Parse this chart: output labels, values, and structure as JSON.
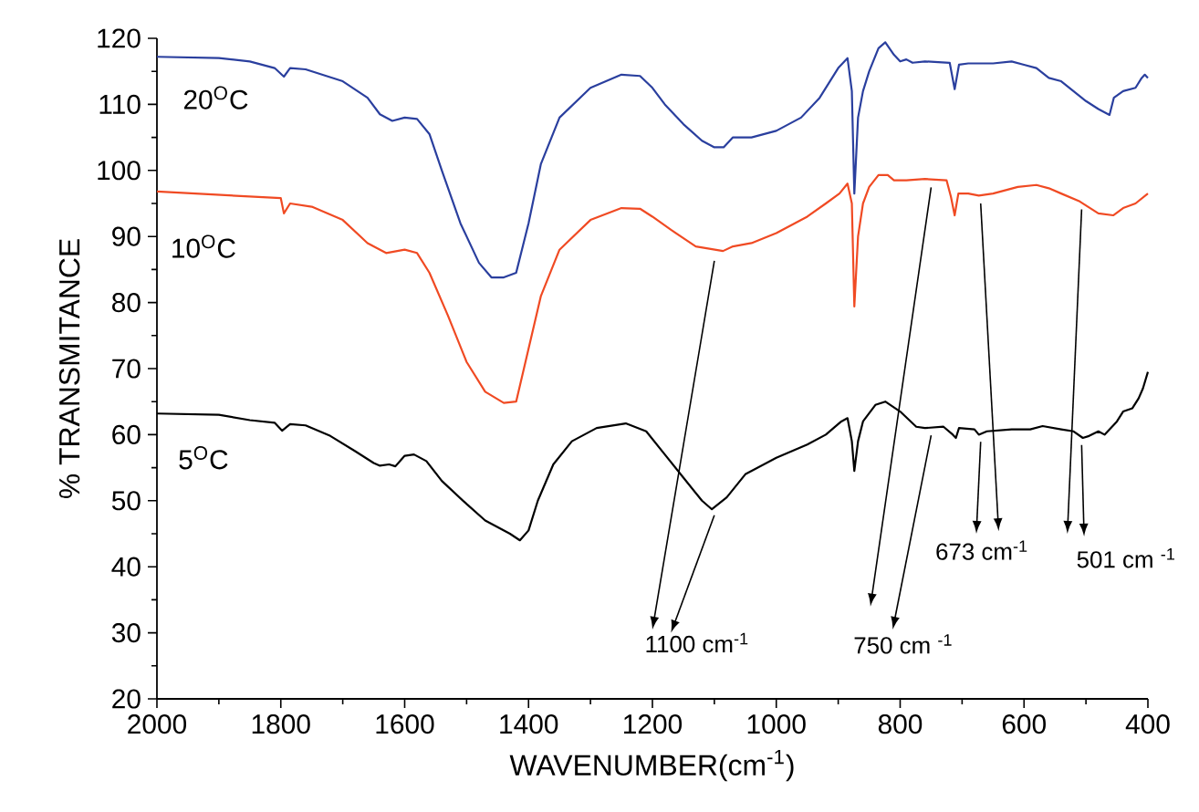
{
  "chart_data": {
    "type": "line",
    "xlabel": "WAVENUMBER(cm$^{-1}$)",
    "ylabel": "% TRANSMITANCE",
    "xlim": [
      2000,
      400
    ],
    "xticks": [
      2000,
      1800,
      1600,
      1400,
      1200,
      1000,
      800,
      600,
      400
    ],
    "ylim": [
      20,
      120
    ],
    "yticks": [
      20,
      30,
      40,
      50,
      60,
      70,
      80,
      90,
      100,
      110,
      120
    ],
    "series": [
      {
        "name": "20$^{O}$C",
        "color": "#2a3f9e",
        "x": [
          2000,
          1900,
          1850,
          1810,
          1795,
          1785,
          1760,
          1700,
          1660,
          1640,
          1620,
          1600,
          1580,
          1560,
          1540,
          1510,
          1480,
          1460,
          1440,
          1420,
          1400,
          1380,
          1350,
          1300,
          1250,
          1220,
          1200,
          1180,
          1150,
          1120,
          1100,
          1085,
          1070,
          1040,
          1000,
          960,
          930,
          900,
          885,
          878,
          874,
          868,
          860,
          850,
          835,
          824,
          810,
          800,
          790,
          780,
          760,
          720,
          712,
          705,
          690,
          650,
          620,
          600,
          580,
          560,
          540,
          520,
          500,
          480,
          462,
          455,
          440,
          420,
          410,
          405,
          400
        ],
        "values": [
          117.2,
          117,
          116.5,
          115.5,
          114.2,
          115.5,
          115.3,
          113.5,
          111,
          108.5,
          107.5,
          108,
          107.8,
          105.5,
          100,
          92,
          86,
          83.8,
          83.8,
          84.5,
          92,
          101,
          108,
          112.5,
          114.5,
          114.3,
          112.5,
          110,
          107,
          104.5,
          103.5,
          103.5,
          105,
          105,
          106,
          108,
          111,
          115.5,
          117,
          112,
          96.5,
          108,
          112,
          115,
          118.5,
          119.4,
          117.5,
          116.5,
          116.8,
          116.3,
          116.5,
          116.3,
          112.3,
          116,
          116.2,
          116.2,
          116.5,
          116,
          115.5,
          114,
          113.5,
          112,
          110.5,
          109.3,
          108.4,
          111,
          112,
          112.5,
          114,
          114.5,
          114
        ]
      },
      {
        "name": "10$^{O}$C",
        "color": "#f04a23",
        "x": [
          2000,
          1800,
          1795,
          1785,
          1750,
          1700,
          1660,
          1630,
          1600,
          1580,
          1560,
          1530,
          1500,
          1470,
          1440,
          1420,
          1400,
          1380,
          1350,
          1300,
          1250,
          1220,
          1200,
          1170,
          1130,
          1086,
          1070,
          1040,
          1000,
          950,
          920,
          898,
          885,
          878,
          874,
          868,
          860,
          850,
          835,
          820,
          810,
          790,
          760,
          725,
          718,
          712,
          706,
          690,
          673,
          650,
          610,
          580,
          560,
          540,
          510,
          480,
          456,
          440,
          420,
          400
        ],
        "values": [
          96.8,
          95.8,
          93.5,
          95,
          94.5,
          92.5,
          89,
          87.5,
          88,
          87.5,
          84.5,
          78,
          71,
          66.5,
          64.8,
          65,
          73,
          81,
          88,
          92.5,
          94.3,
          94.2,
          93,
          91,
          88.5,
          87.8,
          88.5,
          89,
          90.5,
          93,
          95,
          96.5,
          98,
          95,
          79.4,
          90,
          95,
          97.5,
          99.3,
          99.3,
          98.5,
          98.5,
          98.7,
          98.5,
          96,
          93.2,
          96.5,
          96.5,
          96.2,
          96.5,
          97.5,
          97.8,
          97.3,
          96.5,
          95.3,
          93.5,
          93.2,
          94.3,
          95,
          96.5
        ]
      },
      {
        "name": "5$^{O}$C",
        "color": "#000000",
        "x": [
          2000,
          1900,
          1850,
          1810,
          1798,
          1785,
          1760,
          1720,
          1680,
          1650,
          1640,
          1625,
          1615,
          1600,
          1585,
          1565,
          1540,
          1500,
          1470,
          1450,
          1430,
          1414,
          1400,
          1385,
          1360,
          1330,
          1290,
          1243,
          1210,
          1180,
          1150,
          1120,
          1104,
          1080,
          1050,
          1000,
          950,
          920,
          895,
          885,
          878,
          874,
          868,
          860,
          840,
          824,
          800,
          774,
          760,
          730,
          715,
          710,
          705,
          680,
          673,
          660,
          620,
          590,
          570,
          540,
          520,
          505,
          495,
          480,
          470,
          460,
          450,
          440,
          425,
          415,
          408,
          400
        ],
        "values": [
          63.2,
          63,
          62.2,
          61.8,
          60.6,
          61.6,
          61.4,
          59.8,
          57.5,
          55.7,
          55.3,
          55.5,
          55.2,
          56.8,
          57,
          56,
          53,
          49.5,
          47,
          46,
          45,
          44,
          45.5,
          50,
          55.5,
          59,
          61,
          61.7,
          60.5,
          57,
          53.5,
          50,
          48.7,
          50.5,
          54,
          56.5,
          58.5,
          60,
          62,
          62.5,
          59,
          54.5,
          59,
          62,
          64.5,
          65,
          63.5,
          61.2,
          61,
          61.2,
          60,
          59.5,
          61,
          60.8,
          60,
          60.5,
          60.8,
          60.8,
          61.3,
          60.8,
          60.5,
          59.5,
          59.8,
          60.5,
          60,
          61,
          62,
          63.5,
          64,
          65.5,
          67,
          69.5
        ]
      }
    ],
    "annotations": [
      {
        "text": "1100 cm$^{-1}$",
        "x": 1100,
        "y": 87.5
      },
      {
        "text": "750 cm $^{-1}$",
        "x": 750,
        "y": 61.1
      },
      {
        "text": "673 cm$^{-1}$",
        "x": 670,
        "y": 96.2
      },
      {
        "text": "501 cm $^{-1}$",
        "x": 507,
        "y": 95.3
      }
    ]
  }
}
